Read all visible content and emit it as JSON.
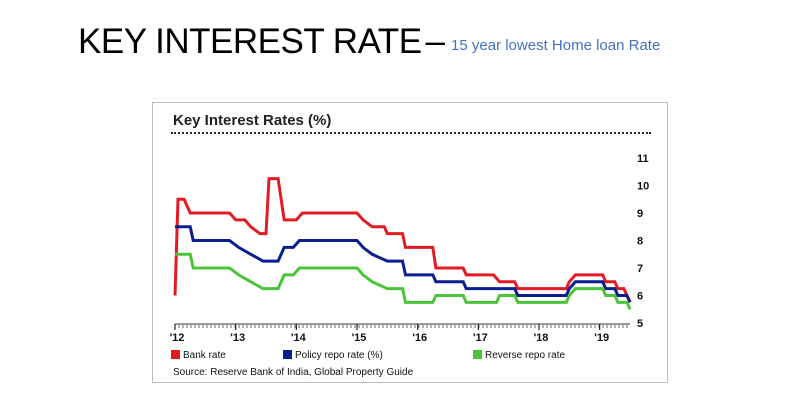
{
  "slide": {
    "title": "KEY INTEREST RATE",
    "separator": "–",
    "subtitle": "15 year lowest Home loan Rate"
  },
  "chart": {
    "source": "Source: Reserve Bank of India, Global Property Guide"
  },
  "colors": {
    "bank_rate": "#e31b23",
    "policy_repo": "#0a1f8f",
    "reverse_repo": "#4cc43a"
  },
  "chart_data": {
    "type": "line",
    "title": "Key Interest Rates (%)",
    "xlabel": "",
    "ylabel": "",
    "ylim": [
      5,
      11
    ],
    "xlim": [
      2012.0,
      2019.5
    ],
    "yticks": [
      5,
      6,
      7,
      8,
      9,
      10,
      11
    ],
    "xticks": [
      {
        "label": "'12",
        "value": 2012.0
      },
      {
        "label": "'13",
        "value": 2013.0
      },
      {
        "label": "'14",
        "value": 2014.0
      },
      {
        "label": "'15",
        "value": 2015.0
      },
      {
        "label": "'16",
        "value": 2016.0
      },
      {
        "label": "'17",
        "value": 2017.0
      },
      {
        "label": "'18",
        "value": 2018.0
      },
      {
        "label": "'19",
        "value": 2019.0
      }
    ],
    "grid": false,
    "legend_position": "bottom",
    "series": [
      {
        "name": "Bank rate",
        "color": "#e31b23",
        "points": [
          [
            2012.0,
            6.0
          ],
          [
            2012.05,
            9.5
          ],
          [
            2012.15,
            9.5
          ],
          [
            2012.25,
            9.0
          ],
          [
            2012.9,
            9.0
          ],
          [
            2013.0,
            8.75
          ],
          [
            2013.15,
            8.75
          ],
          [
            2013.25,
            8.5
          ],
          [
            2013.4,
            8.25
          ],
          [
            2013.5,
            8.25
          ],
          [
            2013.55,
            10.25
          ],
          [
            2013.7,
            10.25
          ],
          [
            2013.8,
            8.75
          ],
          [
            2014.0,
            8.75
          ],
          [
            2014.1,
            9.0
          ],
          [
            2015.0,
            9.0
          ],
          [
            2015.1,
            8.75
          ],
          [
            2015.25,
            8.5
          ],
          [
            2015.45,
            8.5
          ],
          [
            2015.5,
            8.25
          ],
          [
            2015.75,
            8.25
          ],
          [
            2015.8,
            7.75
          ],
          [
            2016.25,
            7.75
          ],
          [
            2016.3,
            7.0
          ],
          [
            2016.75,
            7.0
          ],
          [
            2016.8,
            6.75
          ],
          [
            2017.25,
            6.75
          ],
          [
            2017.35,
            6.5
          ],
          [
            2017.6,
            6.5
          ],
          [
            2017.65,
            6.25
          ],
          [
            2018.45,
            6.25
          ],
          [
            2018.5,
            6.5
          ],
          [
            2018.6,
            6.75
          ],
          [
            2019.05,
            6.75
          ],
          [
            2019.1,
            6.5
          ],
          [
            2019.25,
            6.5
          ],
          [
            2019.3,
            6.25
          ],
          [
            2019.4,
            6.25
          ],
          [
            2019.45,
            6.0
          ],
          [
            2019.5,
            5.75
          ]
        ]
      },
      {
        "name": "Policy repo rate (%)",
        "color": "#0a1f8f",
        "points": [
          [
            2012.0,
            8.5
          ],
          [
            2012.25,
            8.5
          ],
          [
            2012.3,
            8.0
          ],
          [
            2012.9,
            8.0
          ],
          [
            2013.05,
            7.75
          ],
          [
            2013.25,
            7.5
          ],
          [
            2013.45,
            7.25
          ],
          [
            2013.7,
            7.25
          ],
          [
            2013.8,
            7.75
          ],
          [
            2013.95,
            7.75
          ],
          [
            2014.05,
            8.0
          ],
          [
            2015.0,
            8.0
          ],
          [
            2015.1,
            7.75
          ],
          [
            2015.25,
            7.5
          ],
          [
            2015.5,
            7.25
          ],
          [
            2015.75,
            7.25
          ],
          [
            2015.8,
            6.75
          ],
          [
            2016.25,
            6.75
          ],
          [
            2016.3,
            6.5
          ],
          [
            2016.75,
            6.5
          ],
          [
            2016.8,
            6.25
          ],
          [
            2017.6,
            6.25
          ],
          [
            2017.65,
            6.0
          ],
          [
            2018.45,
            6.0
          ],
          [
            2018.5,
            6.25
          ],
          [
            2018.6,
            6.5
          ],
          [
            2019.05,
            6.5
          ],
          [
            2019.1,
            6.25
          ],
          [
            2019.25,
            6.25
          ],
          [
            2019.3,
            6.0
          ],
          [
            2019.45,
            6.0
          ],
          [
            2019.5,
            5.75
          ]
        ]
      },
      {
        "name": "Reverse repo rate",
        "color": "#4cc43a",
        "points": [
          [
            2012.0,
            7.5
          ],
          [
            2012.25,
            7.5
          ],
          [
            2012.3,
            7.0
          ],
          [
            2012.9,
            7.0
          ],
          [
            2013.05,
            6.75
          ],
          [
            2013.25,
            6.5
          ],
          [
            2013.45,
            6.25
          ],
          [
            2013.7,
            6.25
          ],
          [
            2013.8,
            6.75
          ],
          [
            2013.95,
            6.75
          ],
          [
            2014.05,
            7.0
          ],
          [
            2015.0,
            7.0
          ],
          [
            2015.1,
            6.75
          ],
          [
            2015.25,
            6.5
          ],
          [
            2015.5,
            6.25
          ],
          [
            2015.75,
            6.25
          ],
          [
            2015.8,
            5.75
          ],
          [
            2016.25,
            5.75
          ],
          [
            2016.3,
            6.0
          ],
          [
            2016.75,
            6.0
          ],
          [
            2016.8,
            5.75
          ],
          [
            2017.3,
            5.75
          ],
          [
            2017.35,
            6.0
          ],
          [
            2017.6,
            6.0
          ],
          [
            2017.65,
            5.75
          ],
          [
            2018.45,
            5.75
          ],
          [
            2018.5,
            6.0
          ],
          [
            2018.6,
            6.25
          ],
          [
            2019.05,
            6.25
          ],
          [
            2019.1,
            6.0
          ],
          [
            2019.25,
            6.0
          ],
          [
            2019.3,
            5.75
          ],
          [
            2019.45,
            5.75
          ],
          [
            2019.5,
            5.5
          ]
        ]
      }
    ]
  }
}
